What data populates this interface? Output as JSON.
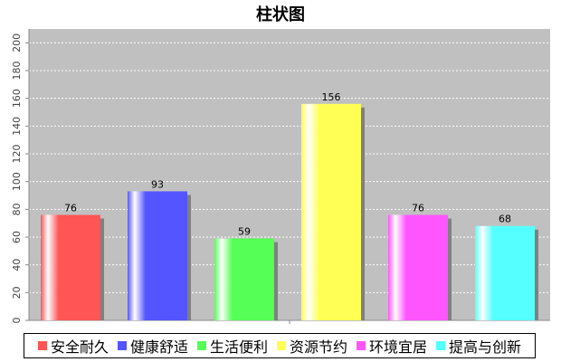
{
  "chart_data": {
    "type": "bar",
    "title": "柱状图",
    "xlabel": "",
    "ylabel": "",
    "ylim": [
      0,
      210
    ],
    "yticks": [
      0,
      20,
      40,
      60,
      80,
      100,
      120,
      140,
      160,
      180,
      200
    ],
    "grid": true,
    "legend_position": "bottom",
    "categories": [
      "安全耐久",
      "健康舒适",
      "生活便利",
      "资源节约",
      "环境宜居",
      "提高与创新"
    ],
    "values": [
      76,
      93,
      59,
      156,
      76,
      68
    ],
    "colors": [
      "#ff5555",
      "#5555ff",
      "#55ff55",
      "#ffff55",
      "#ff55ff",
      "#55ffff"
    ],
    "plot_background": "#c0c0c0"
  }
}
